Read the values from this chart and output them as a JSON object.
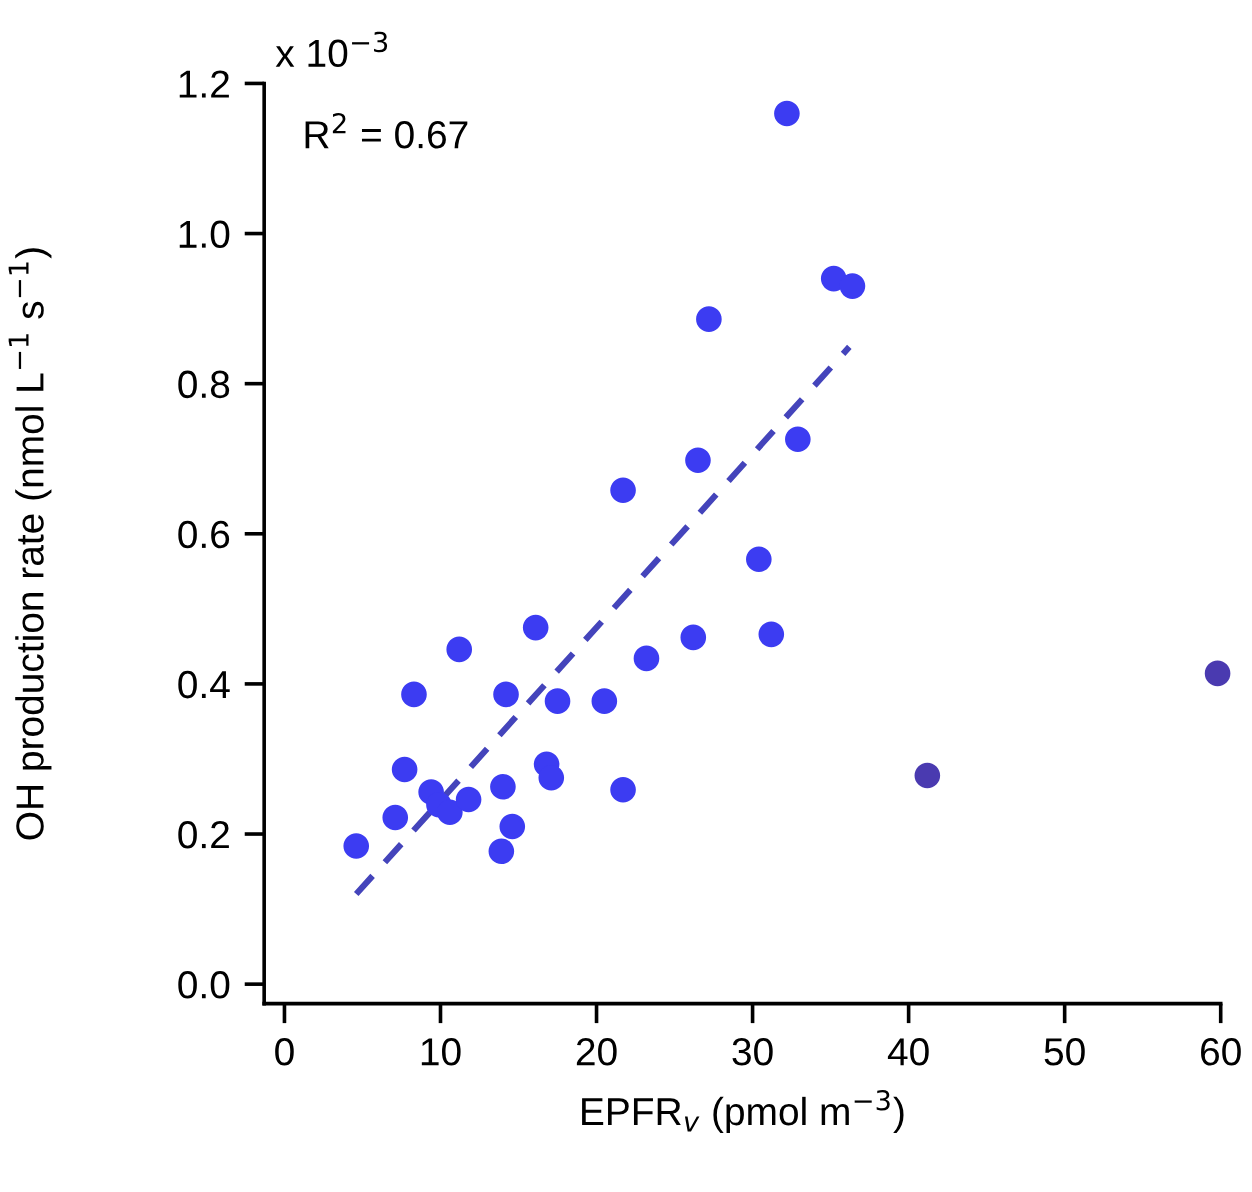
{
  "chart_data": {
    "type": "scatter",
    "xlabel": "EPFR$_{v}$ (pmol m$^{−3}$)",
    "ylabel": "OH production rate (nmol L$^{−1}$ s$^{−1}$)",
    "annotations": [
      "R$^{2}$ = 0.67",
      "x 10$^{−3}$"
    ],
    "series": [
      {
        "color": "#3c3cf2",
        "marker": "circle",
        "x": [
          32.2,
          35.2,
          36.4,
          27.2,
          32.9,
          26.5,
          21.7,
          30.4,
          16.1,
          11.2,
          26.2,
          31.2,
          23.2,
          8.3,
          14.2,
          17.5,
          20.5,
          7.7,
          16.8,
          17.1,
          14.0,
          21.7,
          9.4,
          9.9,
          10.6,
          11.8,
          7.1,
          14.6,
          4.6,
          13.9
        ],
        "values": [
          1.16,
          0.94,
          0.93,
          0.886,
          0.726,
          0.698,
          0.658,
          0.566,
          0.475,
          0.446,
          0.462,
          0.466,
          0.434,
          0.386,
          0.386,
          0.377,
          0.377,
          0.286,
          0.293,
          0.275,
          0.263,
          0.259,
          0.256,
          0.239,
          0.229,
          0.246,
          0.222,
          0.21,
          0.184,
          0.177
        ]
      },
      {
        "color": "#4a3ab0",
        "marker": "circle",
        "x": [
          41.2,
          59.8
        ],
        "values": [
          0.278,
          0.414
        ]
      },
      {
        "type": "line",
        "color": "#4444bb",
        "marker": "none",
        "line_style": "dashed",
        "x": [
          4.6,
          36.2
        ],
        "values": [
          0.12,
          0.849
        ]
      }
    ],
    "xlim": [
      -1.3,
      60
    ],
    "ylim": [
      -0.026,
      1.2
    ],
    "xticks": [
      0,
      10,
      20,
      30,
      40,
      50,
      60
    ],
    "yticks": [
      {
        "value": 0,
        "label": "0.0"
      },
      {
        "value": 0.2,
        "label": "0.2"
      },
      {
        "value": 0.4,
        "label": "0.4"
      },
      {
        "value": 0.6,
        "label": "0.6"
      },
      {
        "value": 0.8,
        "label": "0.8"
      },
      {
        "value": 1.0,
        "label": "1.0"
      },
      {
        "value": 1.2,
        "label": "1.2"
      }
    ],
    "grid": false
  }
}
